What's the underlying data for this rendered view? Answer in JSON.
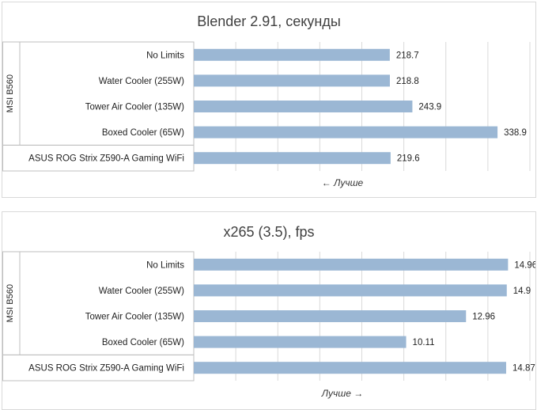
{
  "colors": {
    "bar": "#9bb7d4",
    "grid": "#d9d9d9",
    "frame": "#bfbfbf"
  },
  "chart_data": [
    {
      "type": "bar",
      "orientation": "horizontal",
      "title": "Blender 2.91, секунды",
      "group_label": "MSI B560",
      "categories": [
        "No Limits",
        "Water Cooler (255W)",
        "Tower Air Cooler (135W)",
        "Boxed Cooler (65W)",
        "ASUS ROG Strix Z590-A Gaming WiFi"
      ],
      "values": [
        218.7,
        218.8,
        243.9,
        338.9,
        219.6
      ],
      "value_labels": [
        "218.7",
        "218.8",
        "243.9",
        "338.9",
        "219.6"
      ],
      "xlim": [
        0,
        375
      ],
      "grid": true,
      "note": "← Лучше"
    },
    {
      "type": "bar",
      "orientation": "horizontal",
      "title": "x265 (3.5), fps",
      "group_label": "MSI B560",
      "categories": [
        "No Limits",
        "Water Cooler (255W)",
        "Tower Air Cooler (135W)",
        "Boxed Cooler (65W)",
        "ASUS ROG Strix Z590-A Gaming WiFi"
      ],
      "values": [
        14.96,
        14.9,
        12.96,
        10.11,
        14.87
      ],
      "value_labels": [
        "14.96",
        "14.9",
        "12.96",
        "10.11",
        "14.87"
      ],
      "xlim": [
        0,
        16
      ],
      "grid": true,
      "note": "Лучше →"
    }
  ]
}
